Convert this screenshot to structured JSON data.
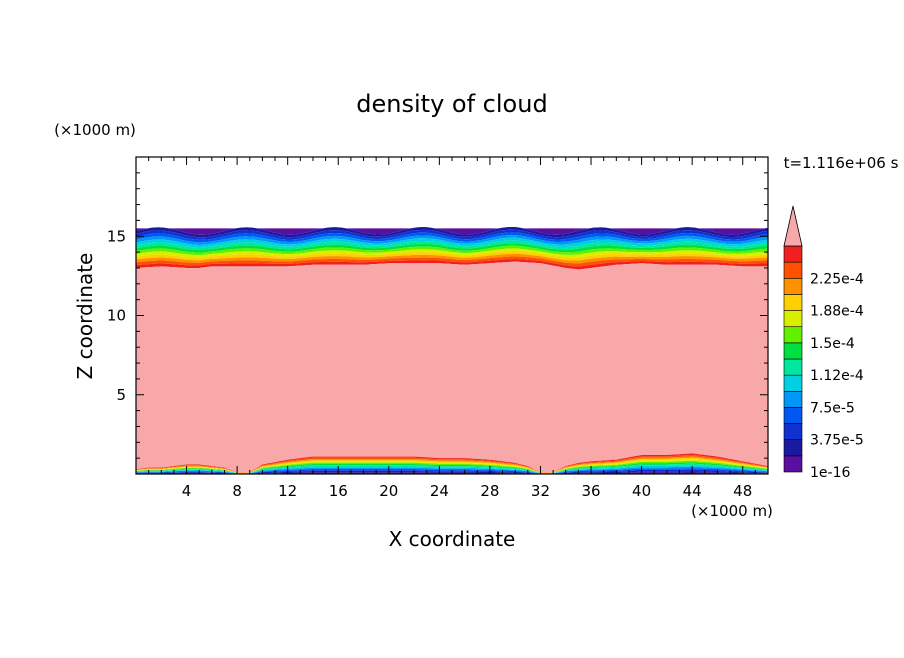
{
  "chart_data": {
    "type": "heatmap",
    "title": "density of cloud",
    "xlabel": "X coordinate",
    "ylabel": "Z coordinate",
    "x_unit": "(×1000 m)",
    "y_unit": "(×1000 m)",
    "time_label": "t=1.116e+06 s",
    "xlim": [
      0,
      50
    ],
    "ylim": [
      0,
      20
    ],
    "x_ticks": [
      4,
      8,
      12,
      16,
      20,
      24,
      28,
      32,
      36,
      40,
      44,
      48
    ],
    "y_ticks": [
      5,
      10,
      15
    ],
    "colorbar": {
      "labels": [
        "1e-16",
        "3.75e-5",
        "7.5e-5",
        "1.12e-4",
        "1.5e-4",
        "1.88e-4",
        "2.25e-4"
      ],
      "levels": [
        1e-16,
        1.875e-05,
        3.75e-05,
        5.625e-05,
        7.5e-05,
        9.375e-05,
        0.000112,
        0.000131,
        0.00015,
        0.000169,
        0.000188,
        0.000206,
        0.000225,
        0.000244
      ],
      "colors": [
        "#5a0fa0",
        "#1a1aa0",
        "#1030d0",
        "#0058f0",
        "#0098f8",
        "#00d0e0",
        "#00e8a0",
        "#00e040",
        "#60f000",
        "#d8f000",
        "#ffd000",
        "#ff9000",
        "#ff5000",
        "#f02020"
      ],
      "overflow_color": "#f8a8a8"
    },
    "cloud_layer": {
      "top_profile": {
        "x": [
          0,
          2,
          4,
          5,
          6,
          8,
          10,
          12,
          14,
          16,
          18,
          20,
          22,
          24,
          26,
          28,
          30,
          32,
          34,
          35,
          36,
          38,
          40,
          42,
          44,
          46,
          48,
          50
        ],
        "z": [
          15.5,
          15.5,
          15.5,
          15.5,
          15.5,
          15.5,
          15.5,
          15.5,
          15.5,
          15.5,
          15.5,
          15.5,
          15.5,
          15.5,
          15.5,
          15.5,
          15.5,
          15.5,
          15.5,
          15.5,
          15.5,
          15.5,
          15.5,
          15.5,
          15.5,
          15.5,
          15.5,
          15.5
        ]
      },
      "upper_edge_profile": {
        "x": [
          0,
          2,
          4,
          5,
          6,
          8,
          10,
          12,
          14,
          16,
          18,
          20,
          22,
          24,
          26,
          28,
          30,
          32,
          34,
          35,
          36,
          38,
          40,
          42,
          44,
          46,
          48,
          50
        ],
        "z": [
          13.0,
          13.1,
          13.0,
          13.0,
          13.1,
          13.1,
          13.1,
          13.1,
          13.2,
          13.2,
          13.2,
          13.3,
          13.3,
          13.3,
          13.2,
          13.3,
          13.4,
          13.3,
          13.0,
          12.9,
          13.0,
          13.2,
          13.3,
          13.2,
          13.2,
          13.2,
          13.1,
          13.1
        ]
      },
      "lower_edge_profile": {
        "x": [
          0,
          1,
          2,
          3,
          4,
          5,
          6,
          7,
          8,
          9,
          10,
          12,
          14,
          16,
          18,
          20,
          22,
          24,
          26,
          28,
          30,
          31,
          32,
          33,
          34,
          35,
          36,
          38,
          40,
          42,
          44,
          46,
          48,
          50
        ],
        "z": [
          0.3,
          0.4,
          0.4,
          0.5,
          0.6,
          0.6,
          0.5,
          0.4,
          0.1,
          0.1,
          0.6,
          0.9,
          1.1,
          1.1,
          1.1,
          1.1,
          1.1,
          1.0,
          1.0,
          0.9,
          0.7,
          0.5,
          0.1,
          0.1,
          0.5,
          0.7,
          0.8,
          0.9,
          1.2,
          1.2,
          1.3,
          1.1,
          0.8,
          0.5
        ]
      }
    }
  }
}
